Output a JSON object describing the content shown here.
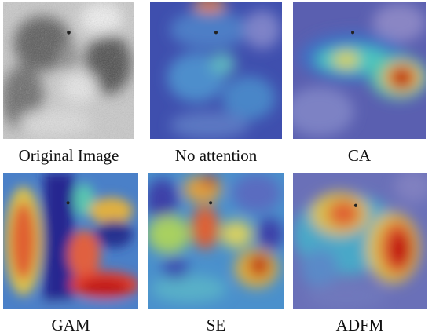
{
  "panels": [
    {
      "caption": "Original Image"
    },
    {
      "caption": "No attention"
    },
    {
      "caption": "CA"
    },
    {
      "caption": "GAM"
    },
    {
      "caption": "SE"
    },
    {
      "caption": "ADFM"
    }
  ]
}
